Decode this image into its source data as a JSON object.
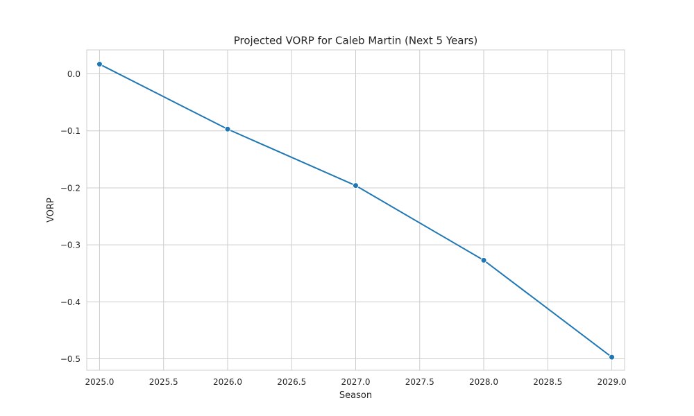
{
  "chart_data": {
    "type": "line",
    "title": "Projected VORP for Caleb Martin (Next 5 Years)",
    "xlabel": "Season",
    "ylabel": "VORP",
    "xlim": [
      2024.9,
      2029.1
    ],
    "ylim": [
      -0.52,
      0.042
    ],
    "x_ticks": [
      2025.0,
      2025.5,
      2026.0,
      2026.5,
      2027.0,
      2027.5,
      2028.0,
      2028.5,
      2029.0
    ],
    "x_tick_labels": [
      "2025.0",
      "2025.5",
      "2026.0",
      "2026.5",
      "2027.0",
      "2027.5",
      "2028.0",
      "2028.5",
      "2029.0"
    ],
    "y_ticks": [
      0.0,
      -0.1,
      -0.2,
      -0.3,
      -0.4,
      -0.5
    ],
    "y_tick_labels": [
      "0.0",
      "−0.1",
      "−0.2",
      "−0.3",
      "−0.4",
      "−0.5"
    ],
    "grid": true,
    "series": [
      {
        "color": "#1f77b4",
        "marker": "circle",
        "x": [
          2025,
          2026,
          2027,
          2028,
          2029
        ],
        "y": [
          0.017,
          -0.097,
          -0.196,
          -0.327,
          -0.497
        ]
      }
    ]
  }
}
